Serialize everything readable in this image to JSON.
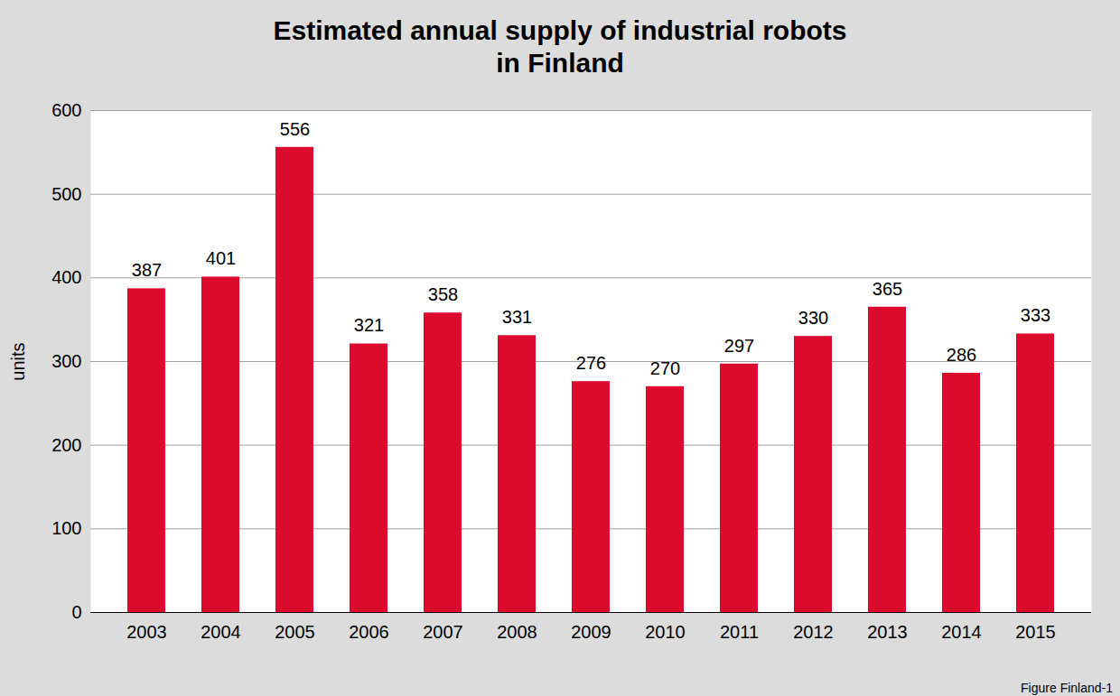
{
  "chart_data": {
    "type": "bar",
    "title": "Estimated annual supply of industrial robots\nin Finland",
    "y_label": "units",
    "caption": "Figure Finland-1",
    "categories": [
      "2003",
      "2004",
      "2005",
      "2006",
      "2007",
      "2008",
      "2009",
      "2010",
      "2011",
      "2012",
      "2013",
      "2014",
      "2015"
    ],
    "values": [
      387,
      401,
      556,
      321,
      358,
      331,
      276,
      270,
      297,
      330,
      365,
      286,
      333
    ],
    "color": "#dc0a2d",
    "ylim": [
      0,
      600
    ],
    "yticks": [
      0,
      100,
      200,
      300,
      400,
      500,
      600
    ],
    "grid": true,
    "data_labels": true
  }
}
